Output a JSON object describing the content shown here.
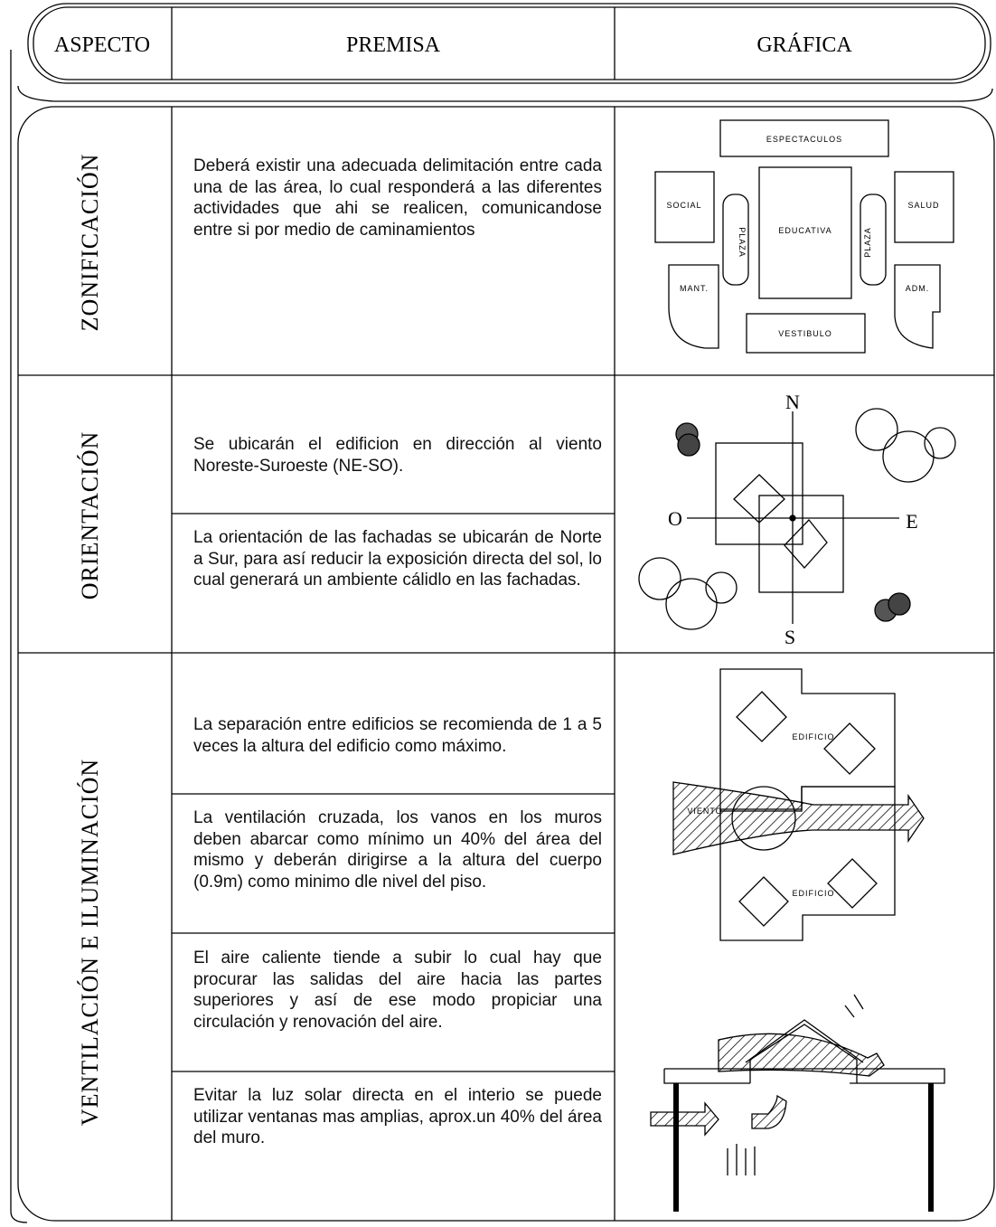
{
  "header": {
    "columns": [
      "ASPECTO",
      "PREMISA",
      "GRÁFICA"
    ]
  },
  "rows": [
    {
      "aspect": "ZONIFICACIÓN",
      "premises": [
        "Deberá existir una adecuada delimitación entre cada una de las área, lo cual responderá a las diferentes actividades que ahi se realicen, comunicandose entre si por medio de caminamientos"
      ],
      "graphic_labels": [
        "ESPECTACULOS",
        "SOCIAL",
        "PLAZA",
        "EDUCATIVA",
        "PLAZA",
        "SALUD",
        "MANT.",
        "ADM.",
        "VESTIBULO"
      ]
    },
    {
      "aspect": "ORIENTACIÓN",
      "premises": [
        "Se ubicarán el edificion en dirección al viento Noreste-Suroeste (NE-SO).",
        "La orientación de las fachadas se ubicarán de Norte a Sur, para así reducir la exposición directa del sol, lo cual generará un ambiente cálidlo en las fachadas."
      ],
      "graphic_labels": [
        "N",
        "S",
        "O",
        "E"
      ]
    },
    {
      "aspect": "VENTILACIÓN E ILUMINACIÓN",
      "premises": [
        "La separación entre edificios se recomienda de 1 a 5 veces la altura del edificio como máximo.",
        "La ventilación cruzada, los vanos en los muros deben abarcar como mínimo un 40% del área del mismo y deberán dirigirse a la altura del cuerpo (0.9m) como minimo dle nivel del piso.",
        "El aire caliente tiende a subir lo cual hay que procurar las salidas del aire hacia las partes superiores y así de ese modo propiciar una circulación y renovación del aire.",
        "Evitar la luz solar directa en el interio se puede utilizar ventanas mas amplias, aprox.un 40% del área del muro."
      ],
      "graphic_labels": [
        "EDIFICIO",
        "EDIFICIO",
        "VIENTO"
      ]
    }
  ]
}
